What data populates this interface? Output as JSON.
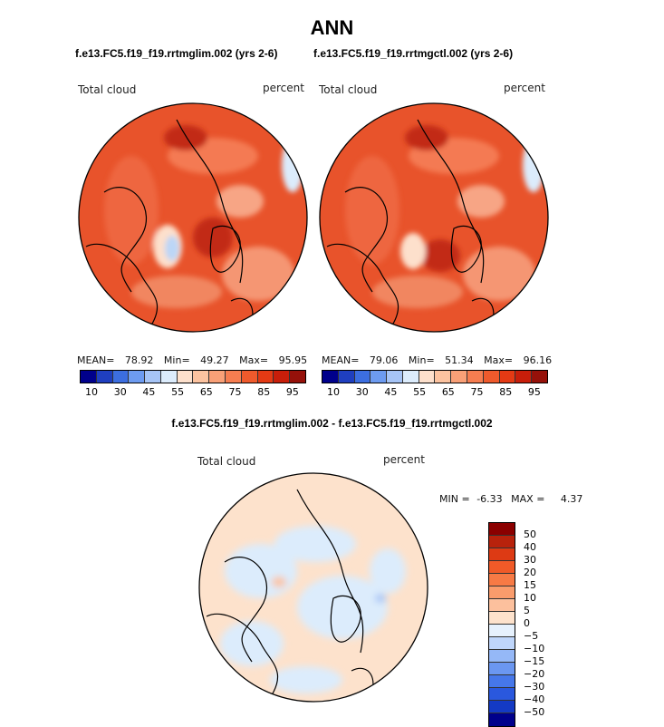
{
  "main_title": "ANN",
  "panels": [
    {
      "case_title": "f.e13.FC5.f19_f19.rrtmglim.002 (yrs 2-6)",
      "variable_label": "Total cloud",
      "units_label": "percent",
      "stats": {
        "mean_label": "MEAN=",
        "mean": "78.92",
        "min_label": "Min=",
        "min": "49.27",
        "max_label": "Max=",
        "max": "95.95"
      }
    },
    {
      "case_title": "f.e13.FC5.f19_f19.rrtmgctl.002 (yrs 2-6)",
      "variable_label": "Total cloud",
      "units_label": "percent",
      "stats": {
        "mean_label": "MEAN=",
        "mean": "79.06",
        "min_label": "Min=",
        "min": "51.34",
        "max_label": "Max=",
        "max": "96.16"
      }
    }
  ],
  "colorbar": {
    "colors": [
      "#00008b",
      "#1f3fbf",
      "#3c6ee0",
      "#6d9bf0",
      "#a6c4f6",
      "#dcecfc",
      "#fde0cc",
      "#fcc3a0",
      "#f9a077",
      "#f67d50",
      "#ef5a2c",
      "#e43a14",
      "#c81e0a",
      "#96110a"
    ],
    "tick_labels": [
      "10",
      "30",
      "45",
      "55",
      "65",
      "75",
      "85",
      "95"
    ]
  },
  "diff": {
    "title": "f.e13.FC5.f19_f19.rrtmglim.002 - f.e13.FC5.f19_f19.rrtmgctl.002",
    "variable_label": "Total cloud",
    "units_label": "percent",
    "min_label": "MIN =",
    "min": "-6.33",
    "max_label": "MAX =",
    "max": "4.37",
    "colorbar": {
      "colors": [
        "#8b0000",
        "#b8220c",
        "#dd3a14",
        "#f05a28",
        "#f77a45",
        "#fa9c6c",
        "#fcc09d",
        "#fde2cc",
        "#e6f1fd",
        "#bfd6fb",
        "#95b8f7",
        "#6b97f1",
        "#4677ea",
        "#2a58de",
        "#143ac4",
        "#00008b"
      ],
      "labels": [
        "50",
        "40",
        "30",
        "20",
        "15",
        "10",
        "5",
        "0",
        "−5",
        "−10",
        "−15",
        "−20",
        "−30",
        "−40",
        "−50"
      ]
    }
  }
}
